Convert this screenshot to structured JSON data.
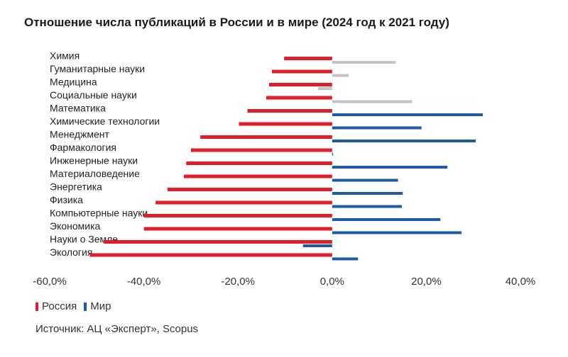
{
  "title": "Отношение числа публикаций в России и в мире (2024 год к 2021 году)",
  "source": "Источник: АЦ «Эксперт», Scopus",
  "colors": {
    "russia": "#e01e2a",
    "world": "#1f5aa6",
    "gray": "#c4c4c4"
  },
  "chart_data": {
    "type": "bar",
    "orientation": "horizontal",
    "title": "Отношение числа публикаций в России и в мире (2024 год к 2021 году)",
    "xlim": [
      -60,
      40
    ],
    "ticks": [
      "-60,0%",
      "-40,0%",
      "-20,0%",
      "0,0%",
      "20,0%",
      "40,0%"
    ],
    "tick_values": [
      -60,
      -40,
      -20,
      0,
      20,
      40
    ],
    "legend_position": "bottom-left",
    "categories": [
      "Химия",
      "Гуманитарные науки",
      "Медицина",
      "Социальные науки",
      "Математика",
      "Химические технологии",
      "Менеджмент",
      "Фармакология",
      "Инженерные науки",
      "Материаловедение",
      "Энергетика",
      "Физика",
      "Компьютерные науки",
      "Экономика",
      "Науки о Земле",
      "Экология"
    ],
    "series": [
      {
        "name": "Россия",
        "color": "#e01e2a",
        "values": [
          -10.2,
          -12.8,
          -13.4,
          -14.0,
          -18.0,
          -19.8,
          -28.0,
          -30.0,
          -31.0,
          -31.5,
          -35.0,
          -37.5,
          -40.0,
          -40.0,
          -48.5,
          -51.5
        ]
      },
      {
        "name": "Мир",
        "color": "#1f5aa6",
        "values": [
          13.5,
          3.5,
          -3.0,
          17.0,
          32.0,
          19.0,
          30.5,
          0.2,
          24.5,
          14.0,
          15.0,
          14.8,
          23.0,
          27.5,
          -6.2,
          5.5
        ]
      }
    ],
    "highlight_gray": [
      0,
      1,
      2,
      3
    ]
  }
}
